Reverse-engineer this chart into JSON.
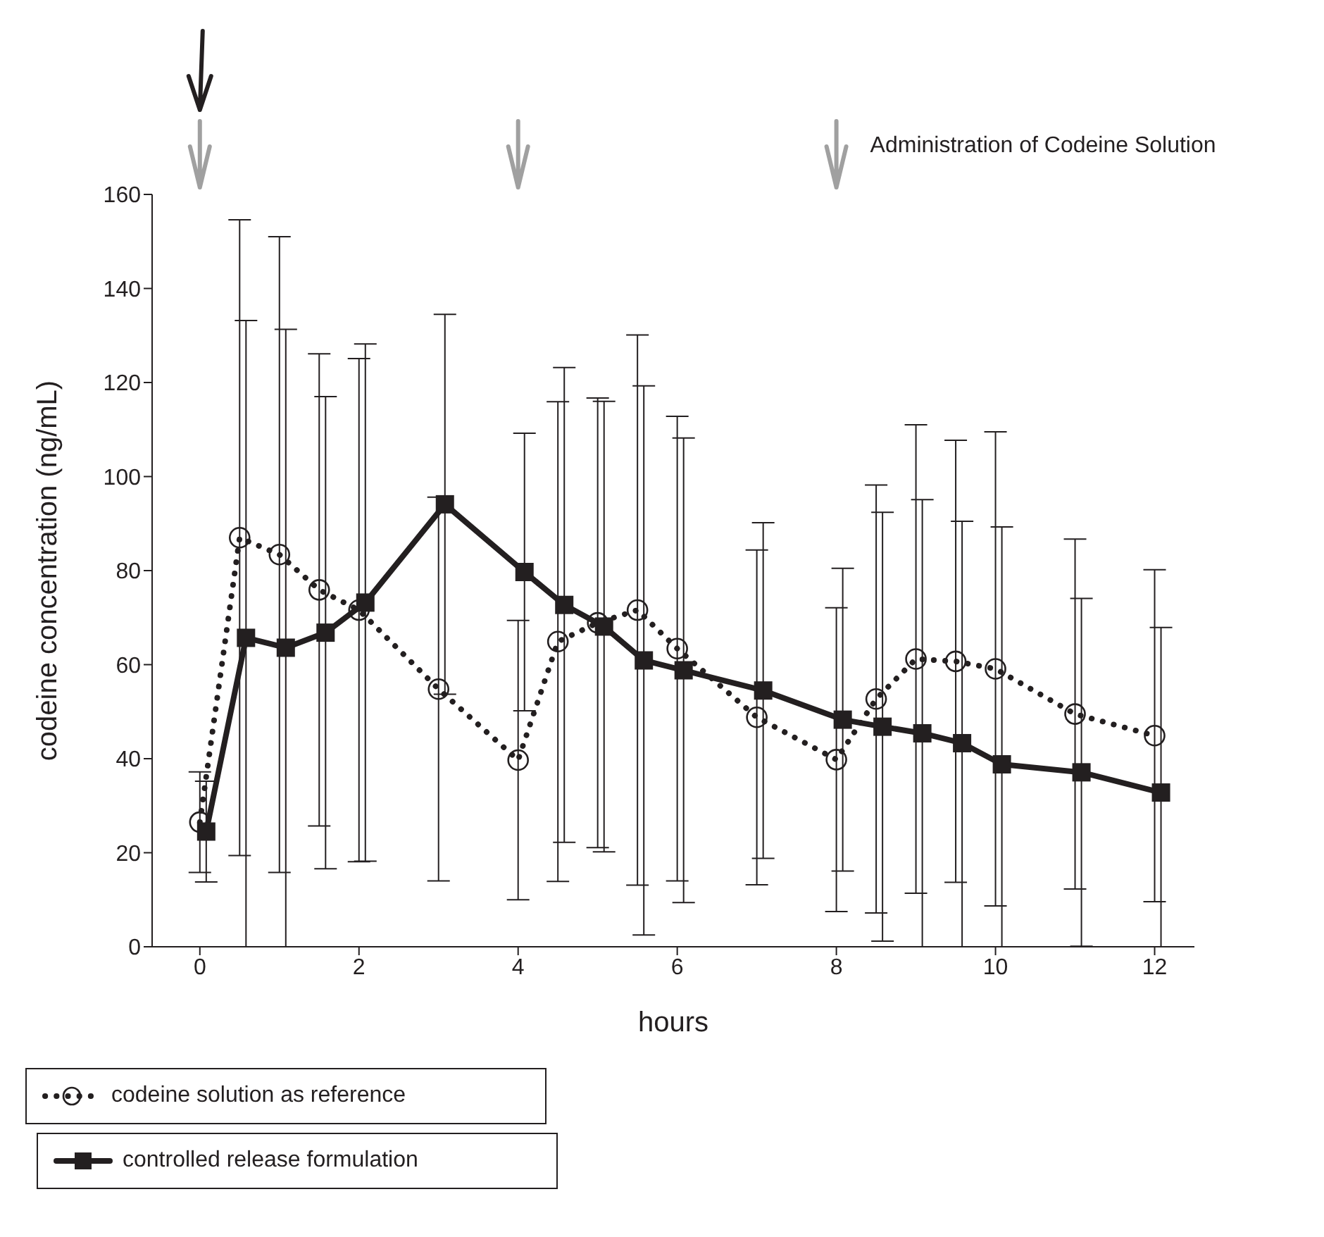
{
  "chart_data": {
    "type": "line",
    "xlabel": "hours",
    "ylabel": "codeine concentration (ng/mL)",
    "annotations": [
      "Administration of Codeine Solution"
    ],
    "xlim": [
      -0.6,
      12.5
    ],
    "xticks": [
      0,
      2,
      4,
      6,
      8,
      10,
      12
    ],
    "ylim": [
      0,
      160
    ],
    "yticks": [
      0,
      20,
      40,
      60,
      80,
      100,
      120,
      140,
      160
    ],
    "grid": false,
    "legend": "bottom left",
    "series": [
      {
        "name": "codeine solution as reference",
        "color": "#231f20",
        "marker": "circle",
        "line_style": "dotted",
        "x": [
          0,
          0.5,
          1,
          1.5,
          2,
          3,
          4,
          4.5,
          5,
          5.5,
          6,
          7,
          8,
          8.5,
          9,
          9.5,
          10,
          11,
          12
        ],
        "values": [
          26.5,
          87,
          83.4,
          75.9,
          71.6,
          54.8,
          39.7,
          64.9,
          68.9,
          71.6,
          63.4,
          48.8,
          39.8,
          52.7,
          61.2,
          60.7,
          59.1,
          49.5,
          44.9
        ],
        "errors": [
          10.7,
          67.6,
          67.6,
          50.2,
          53.5,
          40.8,
          29.7,
          51,
          47.8,
          58.5,
          49.4,
          35.6,
          32.3,
          45.5,
          49.8,
          47,
          50.4,
          37.2,
          35.3
        ]
      },
      {
        "name": "controlled release formulation",
        "color": "#231f20",
        "marker": "square",
        "line_style": "solid",
        "x": [
          0.08,
          0.58,
          1.08,
          1.58,
          2.08,
          3.08,
          4.08,
          4.58,
          5.08,
          5.58,
          6.08,
          7.08,
          8.08,
          8.58,
          9.08,
          9.58,
          10.08,
          11.08,
          12.08
        ],
        "values": [
          24.5,
          65.7,
          63.6,
          66.8,
          73.2,
          94.1,
          79.7,
          72.7,
          68.1,
          60.9,
          58.8,
          54.5,
          48.3,
          46.8,
          45.4,
          43.3,
          38.8,
          37.1,
          32.8
        ],
        "errors": [
          10.7,
          [
            0,
            133.2
          ],
          [
            0,
            131.3
          ],
          50.2,
          55,
          40.4,
          29.5,
          50.5,
          47.9,
          58.4,
          49.4,
          35.7,
          32.2,
          45.6,
          [
            0,
            95.1
          ],
          [
            0,
            90.5
          ],
          [
            0,
            89.3
          ],
          37,
          [
            0,
            67.9
          ]
        ]
      }
    ]
  }
}
